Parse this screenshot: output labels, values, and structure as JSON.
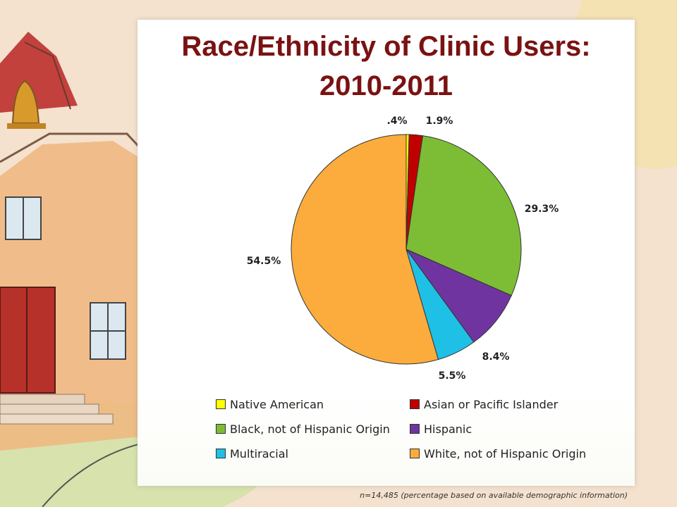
{
  "title_line1": "Race/Ethnicity of Clinic Users:",
  "title_line2": "2010-2011",
  "chart_data": {
    "type": "pie",
    "title": "Race/Ethnicity of Clinic Users: 2010-2011",
    "categories": [
      "Native American",
      "Asian or Pacific Islander",
      "Black, not of Hispanic Origin",
      "Hispanic",
      "Multiracial",
      "White, not of Hispanic Origin"
    ],
    "values": [
      0.4,
      1.9,
      29.3,
      8.4,
      5.5,
      54.5
    ],
    "data_labels": [
      ".4%",
      "1.9%",
      "29.3%",
      "8.4%",
      "5.5%",
      "54.5%"
    ],
    "colors": [
      "#ffff00",
      "#c00000",
      "#7dbd35",
      "#7034a0",
      "#1fc0e6",
      "#fcac3c"
    ],
    "legend_position": "bottom",
    "footnote": "n=14,485 (percentage based on available demographic information)"
  }
}
